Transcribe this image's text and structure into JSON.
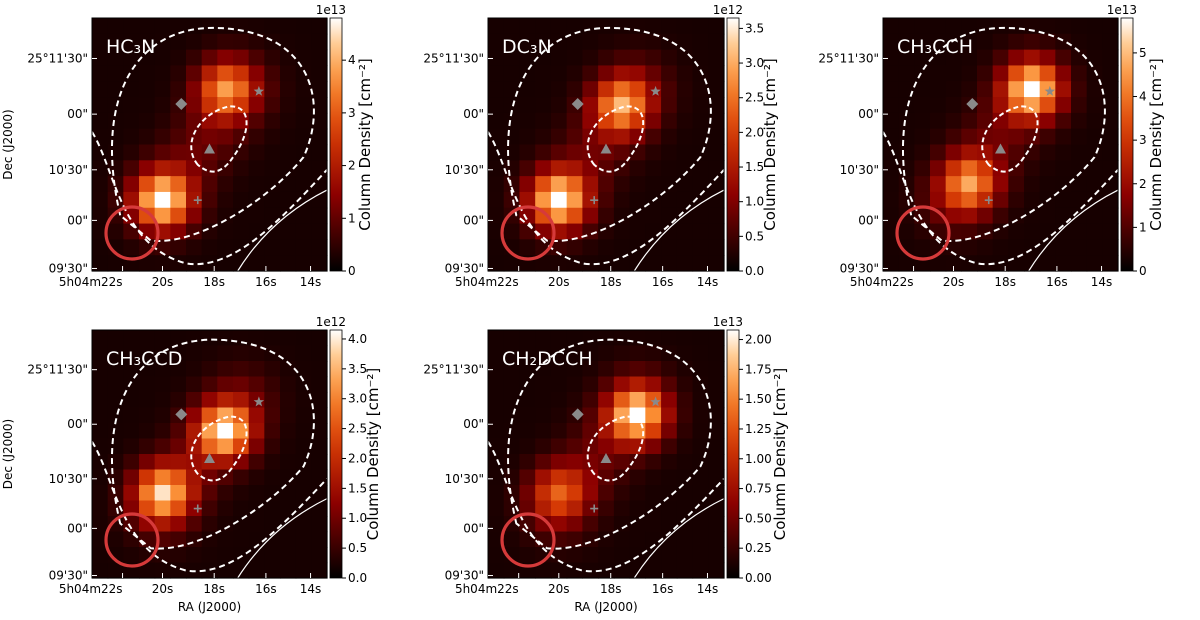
{
  "colors": {
    "ring": "#d63a3a",
    "marker": "#8a8a8a",
    "contour": "#ffffff"
  },
  "chart_data": [
    {
      "type": "heatmap",
      "title": "HC₃N",
      "colorbar": {
        "label": "Column Density  [cm⁻²]",
        "scale": "1e13",
        "ticks": [
          "0",
          "1",
          "2",
          "3",
          "4"
        ],
        "range": [
          0,
          4.8
        ]
      },
      "xlabel": "",
      "ylabel": "Dec (J2000)",
      "xticks": [
        "5h04m22s",
        "20s",
        "18s",
        "16s",
        "14s"
      ],
      "yticks": [
        "25°11'30\"",
        "00\"",
        "10'30\"",
        "00\"",
        "09'30\""
      ],
      "peaks": [
        {
          "i": 4,
          "j": 11,
          "v": 1.0
        },
        {
          "i": 8,
          "j": 4,
          "v": 0.74
        }
      ]
    },
    {
      "type": "heatmap",
      "title": "DC₃N",
      "colorbar": {
        "label": "Column Density  [cm⁻²]",
        "scale": "1e12",
        "ticks": [
          "0.0",
          "0.5",
          "1.0",
          "1.5",
          "2.0",
          "2.5",
          "3.0",
          "3.5"
        ],
        "range": [
          0,
          3.65
        ]
      },
      "xlabel": "",
      "ylabel": "",
      "xticks": [
        "5h04m22s",
        "20s",
        "18s",
        "16s",
        "14s"
      ],
      "yticks": [
        "25°11'30\"",
        "00\"",
        "10'30\"",
        "00\"",
        "09'30\""
      ],
      "peaks": [
        {
          "i": 4,
          "j": 11,
          "v": 1.0
        },
        {
          "i": 8,
          "j": 5,
          "v": 0.8
        }
      ]
    },
    {
      "type": "heatmap",
      "title": "CH₃CCH",
      "colorbar": {
        "label": "Column Density  [cm⁻²]",
        "scale": "1e13",
        "ticks": [
          "0",
          "1",
          "2",
          "3",
          "4",
          "5"
        ],
        "range": [
          0,
          5.8
        ]
      },
      "xlabel": "",
      "ylabel": "",
      "xticks": [
        "5h04m22s",
        "20s",
        "18s",
        "16s",
        "14s"
      ],
      "yticks": [
        "25°11'30\"",
        "00\"",
        "10'30\"",
        "00\"",
        "09'30\""
      ],
      "peaks": [
        {
          "i": 5,
          "j": 10,
          "v": 0.75
        },
        {
          "i": 9,
          "j": 4,
          "v": 1.0
        }
      ]
    },
    {
      "type": "heatmap",
      "title": "CH₃CCD",
      "colorbar": {
        "label": "Column Density  [cm⁻²]",
        "scale": "1e12",
        "ticks": [
          "0.0",
          "0.5",
          "1.0",
          "1.5",
          "2.0",
          "2.5",
          "3.0",
          "3.5",
          "4.0"
        ],
        "range": [
          0,
          4.15
        ]
      },
      "xlabel": "RA (J2000)",
      "ylabel": "Dec (J2000)",
      "xticks": [
        "5h04m22s",
        "20s",
        "18s",
        "16s",
        "14s"
      ],
      "yticks": [
        "25°11'30\"",
        "00\"",
        "10'30\"",
        "00\"",
        "09'30\""
      ],
      "peaks": [
        {
          "i": 4,
          "j": 10,
          "v": 0.92
        },
        {
          "i": 8,
          "j": 6,
          "v": 1.0
        }
      ]
    },
    {
      "type": "heatmap",
      "title": "CH₂DCCH",
      "colorbar": {
        "label": "Column Density  [cm⁻²]",
        "scale": "1e13",
        "ticks": [
          "0.00",
          "0.25",
          "0.50",
          "0.75",
          "1.00",
          "1.25",
          "1.50",
          "1.75",
          "2.00"
        ],
        "range": [
          0,
          2.08
        ]
      },
      "xlabel": "RA (J2000)",
      "ylabel": "",
      "xticks": [
        "5h04m22s",
        "20s",
        "18s",
        "16s",
        "14s"
      ],
      "yticks": [
        "25°11'30\"",
        "00\"",
        "10'30\"",
        "00\"",
        "09'30\""
      ],
      "peaks": [
        {
          "i": 4,
          "j": 10,
          "v": 0.55
        },
        {
          "i": 9,
          "j": 5,
          "v": 1.0
        }
      ]
    }
  ]
}
